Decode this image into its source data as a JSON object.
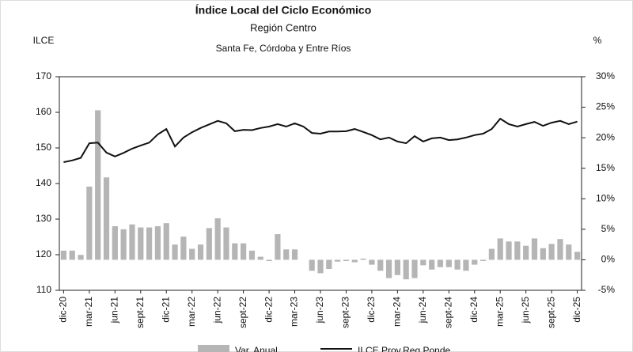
{
  "chart_data": {
    "type": "combo",
    "title": "Índice Local del Ciclo Económico",
    "subtitle": "Región Centro",
    "note": "Santa Fe, Córdoba y Entre Ríos",
    "y_label": "ILCE",
    "y2_label": "%",
    "categories": [
      "dic-20",
      null,
      null,
      "mar-21",
      null,
      null,
      "jun-21",
      null,
      null,
      "sept-21",
      null,
      null,
      "dic-21",
      null,
      null,
      "mar-22",
      null,
      null,
      "jun-22",
      null,
      null,
      "sept-22",
      null,
      null,
      "dic-22",
      null,
      null,
      "mar-23",
      null,
      null,
      "jun-23",
      null,
      null,
      "sept-23",
      null,
      null,
      "dic-23",
      null,
      null,
      "mar-24",
      null,
      null,
      "jun-24",
      null,
      null,
      "sept-24",
      null,
      null,
      "dic-24",
      null,
      null,
      "mar-25",
      null,
      null,
      "jun-25",
      null,
      null,
      "sept-25",
      null,
      null,
      "dic-25"
    ],
    "series": [
      {
        "name": "Var. Anual",
        "type": "bar",
        "axis": "y2",
        "color": "#b5b5b5",
        "values": [
          1.5,
          1.5,
          0.8,
          12.0,
          24.5,
          13.5,
          5.5,
          5.0,
          5.8,
          5.3,
          5.3,
          5.5,
          6.0,
          2.5,
          3.8,
          1.8,
          2.5,
          5.2,
          6.8,
          5.3,
          2.7,
          2.7,
          1.5,
          0.5,
          -0.2,
          4.2,
          1.7,
          1.7,
          0.0,
          -1.8,
          -2.2,
          -1.5,
          -0.3,
          -0.2,
          -0.4,
          0.2,
          -0.8,
          -1.8,
          -3.0,
          -2.5,
          -3.2,
          -3.0,
          -0.9,
          -1.6,
          -1.2,
          -1.2,
          -1.6,
          -1.8,
          -0.8,
          -0.2,
          1.8,
          3.5,
          3.0,
          3.0,
          2.3,
          3.5,
          1.9,
          2.6,
          3.4,
          2.5,
          1.3
        ]
      },
      {
        "name": "ILCE Prov.Reg.Ponde",
        "type": "line",
        "color": "#111111",
        "values": [
          146,
          146.5,
          147.2,
          151.3,
          151.5,
          148.7,
          147.6,
          148.6,
          149.8,
          150.7,
          151.5,
          153.8,
          155.3,
          150.4,
          152.9,
          154.4,
          155.6,
          156.6,
          157.6,
          156.9,
          154.7,
          155.1,
          155.0,
          155.6,
          156.0,
          156.7,
          156.0,
          156.9,
          156.0,
          154.2,
          154.0,
          154.6,
          154.6,
          154.7,
          155.3,
          154.5,
          153.6,
          152.4,
          152.9,
          151.8,
          151.3,
          153.3,
          151.8,
          152.7,
          152.9,
          152.2,
          152.4,
          152.9,
          153.6,
          154.0,
          155.3,
          158.2,
          156.7,
          156.0,
          156.7,
          157.3,
          156.2,
          157.1,
          157.6,
          156.7,
          157.4
        ]
      }
    ],
    "ylim": [
      110,
      170
    ],
    "yticks": [
      110,
      120,
      130,
      140,
      150,
      160,
      170
    ],
    "y2lim": [
      -5,
      30
    ],
    "y2ticks": [
      {
        "value": -5,
        "label": "-5%"
      },
      {
        "value": 0,
        "label": "0%"
      },
      {
        "value": 5,
        "label": "5%"
      },
      {
        "value": 10,
        "label": "10%"
      },
      {
        "value": 15,
        "label": "15%"
      },
      {
        "value": 20,
        "label": "20%"
      },
      {
        "value": 25,
        "label": "25%"
      },
      {
        "value": 30,
        "label": "30%"
      }
    ]
  }
}
